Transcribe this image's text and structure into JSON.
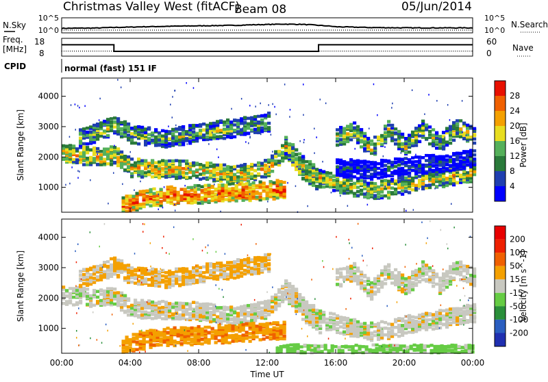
{
  "header": {
    "station": "Christmas Valley West (fitACF)",
    "beam": "Beam 08",
    "date": "05/Jun/2014"
  },
  "strips": {
    "nsky_label": "N.Sky",
    "nsky_ticks": [
      "10^5",
      "10^0"
    ],
    "nsearch_label": "N.Search",
    "nsearch_ticks": [
      "10^5",
      "10^0"
    ],
    "freq_label_1": "Freq.",
    "freq_label_2": "[MHz]",
    "freq_ticks": [
      "18",
      "8"
    ],
    "nave_label": "Nave",
    "nave_ticks": [
      "60",
      "0"
    ],
    "cpid_label": "CPID",
    "cpid_text": "normal (fast) 151 IF"
  },
  "time_axis": {
    "label": "Time UT",
    "ticks": [
      "00:00",
      "04:00",
      "08:00",
      "12:00",
      "16:00",
      "20:00",
      "00:00"
    ]
  },
  "chart_data": [
    {
      "type": "line",
      "title": "N.Sky / N.Search",
      "ylabel_left": "N.Sky",
      "ylabel_right": "N.Search",
      "y_scale": "log",
      "yticks": [
        "10^0",
        "10^5"
      ],
      "x": [
        0,
        2,
        4,
        6,
        8,
        10,
        12,
        13,
        14,
        15,
        16,
        18,
        20,
        22,
        24
      ],
      "series": [
        {
          "name": "N.Sky",
          "values": [
            20,
            25,
            60,
            120,
            200,
            300,
            700,
            1000,
            800,
            300,
            80,
            40,
            30,
            30,
            30
          ]
        }
      ]
    },
    {
      "type": "line",
      "title": "Freq. / Nave",
      "ylabel_left": "Freq. [MHz]",
      "ylabel_right": "Nave",
      "ylim_freq": [
        8,
        18
      ],
      "ylim_nave": [
        0,
        60
      ],
      "x": [
        0,
        3.05,
        3.05,
        15.0,
        15.0,
        24
      ],
      "series": [
        {
          "name": "Freq.",
          "values": [
            14.5,
            14.5,
            10.5,
            10.5,
            14.5,
            14.5
          ]
        },
        {
          "name": "Nave",
          "values": [
            16,
            16,
            14,
            14,
            16,
            16
          ]
        }
      ]
    },
    {
      "type": "heatmap",
      "title": "Power",
      "xlabel": "Time UT",
      "ylabel": "Slant Range [km]",
      "xlim": [
        0,
        24
      ],
      "ylim": [
        180,
        4600
      ],
      "yticks": [
        1000,
        2000,
        3000,
        4000
      ],
      "colorbar": {
        "label": "Power [dB]",
        "ticks": [
          4,
          8,
          12,
          16,
          20,
          24,
          28
        ],
        "colors": [
          "#0000ff",
          "#1f3fb0",
          "#2a7a3a",
          "#55b05a",
          "#e8dd20",
          "#f4a000",
          "#f06000",
          "#e81000"
        ]
      },
      "echo_bands": [
        {
          "t": [
            0.0,
            1.0,
            2.0,
            3.0,
            4.0,
            6.0,
            8.0,
            10.0,
            11.0,
            12.0,
            13.0,
            14.0,
            15.0
          ],
          "r": [
            2150,
            2100,
            2050,
            2100,
            1700,
            1650,
            1600,
            1450,
            1550,
            1700,
            2300,
            1600,
            1200
          ],
          "power": 20
        },
        {
          "t": [
            3.5,
            4.5,
            6.0,
            8.0,
            10.0,
            12.0,
            13.0
          ],
          "r": [
            420,
            650,
            760,
            820,
            880,
            950,
            1000
          ],
          "power": 26
        },
        {
          "t": [
            1.0,
            2.0,
            3.0,
            4.0,
            6.0,
            8.0,
            10.0,
            11.0,
            12.0
          ],
          "r": [
            2700,
            2850,
            3100,
            2800,
            2650,
            2850,
            3000,
            3100,
            3200
          ],
          "power": 14
        },
        {
          "t": [
            13.0,
            14.0,
            15.0,
            16.0,
            17.0,
            18.0,
            19.0,
            20.0,
            21.0,
            22.0,
            23.0,
            24.0
          ],
          "r": [
            2400,
            1800,
            1350,
            1200,
            1050,
            950,
            1000,
            1150,
            1250,
            1350,
            1450,
            1550
          ],
          "power": 18
        },
        {
          "t": [
            16.0,
            17.0,
            18.0,
            19.0,
            20.0,
            21.0,
            22.0,
            23.0,
            24.0
          ],
          "r": [
            2700,
            2900,
            2300,
            2950,
            2400,
            2950,
            2500,
            3000,
            2750
          ],
          "power": 16
        },
        {
          "t": [
            16.0,
            18.0,
            20.0,
            22.0,
            24.0
          ],
          "r": [
            1700,
            1600,
            1750,
            1850,
            2000
          ],
          "power": 6
        }
      ]
    },
    {
      "type": "heatmap",
      "title": "Velocity",
      "xlabel": "Time UT",
      "ylabel": "Slant Range [km]",
      "xlim": [
        0,
        24
      ],
      "ylim": [
        180,
        4600
      ],
      "yticks": [
        1000,
        2000,
        3000,
        4000
      ],
      "colorbar": {
        "label": "Velocity [m s^-1]",
        "ticks": [
          200,
          100,
          50,
          15,
          -15,
          -50,
          -100,
          -200
        ],
        "colors": [
          "#1f2fb0",
          "#2a5ec0",
          "#2a8f3a",
          "#66cc44",
          "#c8c8c0",
          "#f4a000",
          "#f06000",
          "#ee2000",
          "#e80000"
        ]
      },
      "echo_bands": [
        {
          "t": [
            0.0,
            1.0,
            2.0,
            3.0,
            4.0,
            6.0,
            8.0,
            10.0,
            11.0,
            12.0,
            13.0,
            14.0,
            15.0
          ],
          "r": [
            2150,
            2100,
            2050,
            2100,
            1700,
            1650,
            1600,
            1450,
            1550,
            1700,
            2300,
            1600,
            1200
          ],
          "velocity": 0
        },
        {
          "t": [
            3.5,
            4.5,
            6.0,
            8.0,
            10.0,
            12.0,
            13.0
          ],
          "r": [
            420,
            650,
            760,
            820,
            880,
            950,
            1000
          ],
          "velocity": -40
        },
        {
          "t": [
            1.0,
            2.0,
            3.0,
            4.0,
            6.0,
            8.0,
            10.0,
            11.0,
            12.0
          ],
          "r": [
            2700,
            2850,
            3100,
            2800,
            2650,
            2850,
            3000,
            3100,
            3200
          ],
          "velocity": -20
        },
        {
          "t": [
            13.0,
            14.0,
            15.0,
            16.0,
            17.0,
            18.0,
            19.0,
            20.0,
            21.0,
            22.0,
            23.0,
            24.0
          ],
          "r": [
            2400,
            1800,
            1350,
            1200,
            1050,
            950,
            1000,
            1150,
            1250,
            1350,
            1450,
            1550
          ],
          "velocity": 0
        },
        {
          "t": [
            16.0,
            17.0,
            18.0,
            19.0,
            20.0,
            21.0,
            22.0,
            23.0,
            24.0
          ],
          "r": [
            2700,
            2900,
            2300,
            2950,
            2400,
            2950,
            2500,
            3000,
            2750
          ],
          "velocity": 0
        },
        {
          "t": [
            12.5,
            14.0,
            16.0,
            18.0,
            20.0,
            22.0,
            24.0
          ],
          "r": [
            200,
            220,
            200,
            210,
            230,
            200,
            220
          ],
          "velocity": 30
        }
      ]
    }
  ]
}
